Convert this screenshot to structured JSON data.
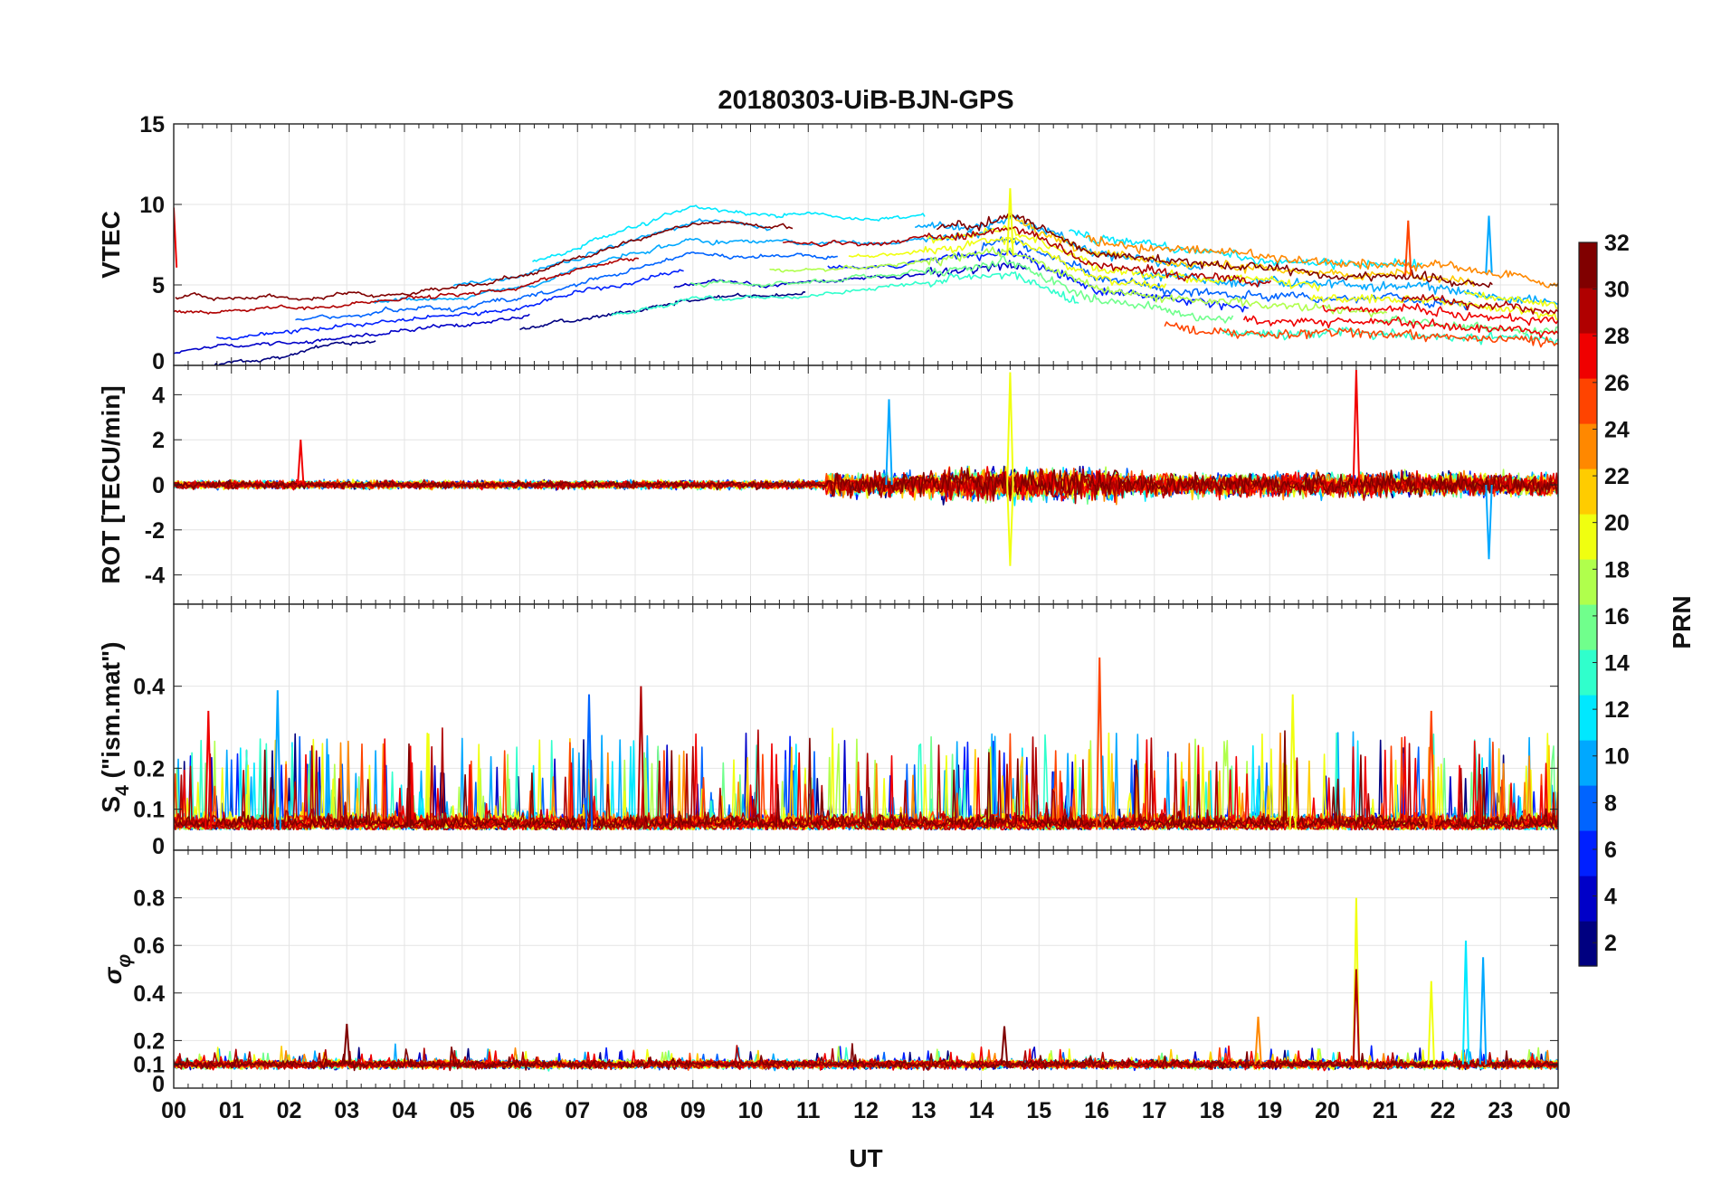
{
  "chart_data": {
    "type": "line",
    "title": "20180303-UiB-BJN-GPS",
    "xlabel": "UT",
    "x_range_hours": [
      0,
      24
    ],
    "x_tick_labels": [
      "00",
      "01",
      "02",
      "03",
      "04",
      "05",
      "06",
      "07",
      "08",
      "09",
      "10",
      "11",
      "12",
      "13",
      "14",
      "15",
      "16",
      "17",
      "18",
      "19",
      "20",
      "21",
      "22",
      "23",
      "00"
    ],
    "grid": true,
    "colorbar": {
      "label": "PRN",
      "colormap": "jet",
      "range": [
        1,
        32
      ],
      "tick_labels": [
        "2",
        "4",
        "6",
        "8",
        "10",
        "12",
        "14",
        "16",
        "18",
        "20",
        "22",
        "24",
        "26",
        "28",
        "30",
        "32"
      ],
      "colors": [
        "#000080",
        "#0000c8",
        "#0020ff",
        "#0064ff",
        "#00a8ff",
        "#00e8ff",
        "#30ffcc",
        "#70ff8c",
        "#b0ff4c",
        "#f0ff10",
        "#ffcc00",
        "#ff8800",
        "#ff4400",
        "#f00000",
        "#b00000",
        "#800000"
      ]
    },
    "panels": [
      {
        "id": "vtec",
        "ylabel": "VTEC",
        "ylim": [
          0,
          15
        ],
        "y_ticks": [
          0,
          5,
          10,
          15
        ],
        "y_tick_labels": [
          "0",
          "5",
          "10",
          "15"
        ],
        "series_values": {
          "hours": [
            0,
            2,
            4,
            6,
            8,
            9,
            10,
            12,
            14,
            14.5,
            16,
            18,
            20,
            22,
            24
          ],
          "mean": [
            2.5,
            2.8,
            3.4,
            4.2,
            6.0,
            7.0,
            6.8,
            6.8,
            7.5,
            7.8,
            5.5,
            4.5,
            4.2,
            4.0,
            3.2
          ],
          "spread": [
            1.2,
            1.0,
            0.8,
            0.9,
            1.2,
            1.3,
            1.2,
            1.0,
            0.9,
            1.0,
            1.0,
            1.1,
            1.0,
            1.0,
            0.8
          ]
        },
        "notable_peaks": [
          {
            "hour": 14.5,
            "value": 11.0,
            "prn": 20
          },
          {
            "hour": 22.8,
            "value": 9.3,
            "prn": 10
          },
          {
            "hour": 21.4,
            "value": 9.0,
            "prn": 26
          },
          {
            "hour": 0.0,
            "value": 9.8,
            "prn": 28
          }
        ]
      },
      {
        "id": "rot",
        "ylabel": "ROT [TECU/min]",
        "ylim": [
          -5.3,
          5.3
        ],
        "y_ticks": [
          -4,
          -2,
          0,
          2,
          4
        ],
        "y_tick_labels": [
          "-4",
          "-2",
          "0",
          "2",
          "4"
        ],
        "activity": {
          "quiet_hours": [
            0,
            11.3
          ],
          "quiet_amplitude": 0.35,
          "active_hours": [
            11.3,
            24
          ],
          "active_amplitude": 1.0
        },
        "notable_spikes": [
          {
            "hour": 14.5,
            "value": 5.0,
            "prn": 20
          },
          {
            "hour": 14.5,
            "value": -3.6,
            "prn": 20
          },
          {
            "hour": 20.5,
            "value": 5.1,
            "prn": 27
          },
          {
            "hour": 12.4,
            "value": 3.8,
            "prn": 10
          },
          {
            "hour": 2.2,
            "value": 2.0,
            "prn": 28
          },
          {
            "hour": 22.8,
            "value": -3.3,
            "prn": 10
          }
        ]
      },
      {
        "id": "s4",
        "ylabel": "S4 (\"ism.mat\")",
        "ylabel_main": "S",
        "ylabel_sub": "4",
        "ylabel_rest": " (\"ism.mat\")",
        "ylim": [
          0,
          0.6
        ],
        "y_ticks": [
          0,
          0.1,
          0.2,
          0.4
        ],
        "y_tick_labels": [
          "0",
          "0.1",
          "0.2",
          "0.4"
        ],
        "baseline": 0.05,
        "notable_peaks": [
          {
            "hour": 16.05,
            "value": 0.47,
            "prn": 25
          },
          {
            "hour": 8.1,
            "value": 0.4,
            "prn": 30
          },
          {
            "hour": 1.8,
            "value": 0.39,
            "prn": 10
          },
          {
            "hour": 7.2,
            "value": 0.38,
            "prn": 8
          },
          {
            "hour": 19.4,
            "value": 0.38,
            "prn": 20
          },
          {
            "hour": 0.6,
            "value": 0.34,
            "prn": 28
          },
          {
            "hour": 21.8,
            "value": 0.34,
            "prn": 26
          }
        ]
      },
      {
        "id": "sigma_phi",
        "ylabel": "σφ",
        "ylabel_main": "σ",
        "ylabel_sub": "φ",
        "ylim": [
          0,
          1.0
        ],
        "y_ticks": [
          0,
          0.1,
          0.2,
          0.4,
          0.6,
          0.8
        ],
        "y_tick_labels": [
          "0",
          "0.1",
          "0.2",
          "0.4",
          "0.6",
          "0.8"
        ],
        "baseline": 0.1,
        "notable_peaks": [
          {
            "hour": 20.5,
            "value": 0.8,
            "prn": 20
          },
          {
            "hour": 20.5,
            "value": 0.5,
            "prn": 30
          },
          {
            "hour": 22.4,
            "value": 0.62,
            "prn": 12
          },
          {
            "hour": 22.7,
            "value": 0.55,
            "prn": 10
          },
          {
            "hour": 21.8,
            "value": 0.45,
            "prn": 20
          },
          {
            "hour": 3.0,
            "value": 0.27,
            "prn": 31
          },
          {
            "hour": 14.4,
            "value": 0.26,
            "prn": 31
          },
          {
            "hour": 18.8,
            "value": 0.3,
            "prn": 24
          }
        ]
      }
    ]
  }
}
